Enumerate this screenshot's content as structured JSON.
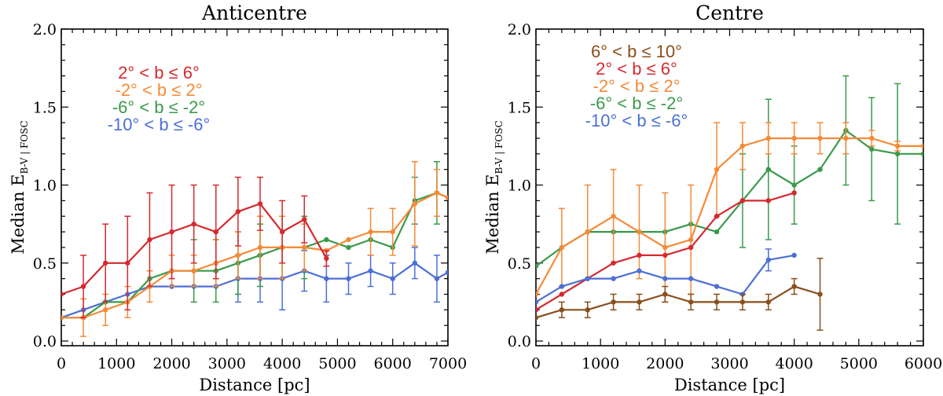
{
  "chart_data": [
    {
      "type": "line",
      "title": "Anticentre",
      "xlabel": "Distance [pc]",
      "ylabel": "Median E",
      "ylabel_sub": "B-V | FOSC",
      "xlim": [
        0,
        7000
      ],
      "ylim": [
        -0.03,
        2.0
      ],
      "xticks": [
        0,
        1000,
        2000,
        3000,
        4000,
        5000,
        6000,
        7000
      ],
      "yticks": [
        0.0,
        0.5,
        1.0,
        1.5,
        2.0
      ],
      "xtick_labels": [
        "0",
        "1000",
        "2000",
        "3000",
        "4000",
        "5000",
        "6000",
        "7000"
      ],
      "ytick_labels": [
        "0.0",
        "0.5",
        "1.0",
        "1.5",
        "2.0"
      ],
      "legend": [
        {
          "label": "2° < b ≤  6°",
          "color": "#d42a2e"
        },
        {
          "label": "-2° < b ≤  2°",
          "color": "#f58a38"
        },
        {
          "label": "-6° < b ≤ -2°",
          "color": "#3a9a4a"
        },
        {
          "label": "-10° < b ≤ -6°",
          "color": "#4c6fd6"
        }
      ],
      "series": [
        {
          "name": "-10° < b ≤ -6°",
          "color": "#4c6fd6",
          "x": [
            0,
            400,
            800,
            1200,
            1600,
            2000,
            2400,
            2800,
            3200,
            3600,
            4000,
            4400,
            4800,
            5200,
            5600,
            6000,
            6400,
            6800,
            7000
          ],
          "y": [
            0.15,
            0.2,
            0.25,
            0.3,
            0.35,
            0.35,
            0.35,
            0.35,
            0.4,
            0.4,
            0.4,
            0.45,
            0.4,
            0.4,
            0.45,
            0.4,
            0.5,
            0.4,
            0.44
          ],
          "err": [
            0,
            0,
            0,
            0,
            0,
            0,
            0,
            0,
            0.15,
            0.15,
            0.2,
            0.13,
            0.15,
            0.1,
            0.1,
            0.1,
            0.1,
            0.15,
            0
          ]
        },
        {
          "name": "-6° < b ≤ -2°",
          "color": "#3a9a4a",
          "x": [
            0,
            400,
            800,
            1200,
            1600,
            2000,
            2400,
            2800,
            3200,
            3600,
            4000,
            4400,
            4800,
            5200,
            5600,
            6000,
            6400,
            6800,
            7000
          ],
          "y": [
            0.15,
            0.15,
            0.25,
            0.25,
            0.4,
            0.45,
            0.45,
            0.45,
            0.5,
            0.55,
            0.6,
            0.6,
            0.65,
            0.6,
            0.65,
            0.6,
            0.9,
            0.95,
            0.92
          ],
          "err": [
            0,
            0,
            0,
            0,
            0,
            0,
            0.2,
            0.2,
            0.2,
            0.2,
            0.2,
            0.2,
            0,
            0,
            0,
            0,
            0.15,
            0.2,
            0
          ]
        },
        {
          "name": "-2° < b ≤  2°",
          "color": "#f58a38",
          "x": [
            0,
            400,
            800,
            1200,
            1600,
            2000,
            2400,
            2800,
            3200,
            3600,
            4000,
            4400,
            4800,
            5200,
            5600,
            6000,
            6400,
            6800,
            7000
          ],
          "y": [
            0.15,
            0.15,
            0.2,
            0.25,
            0.35,
            0.45,
            0.45,
            0.5,
            0.55,
            0.6,
            0.6,
            0.6,
            0.58,
            0.65,
            0.7,
            0.7,
            0.88,
            0.95,
            0.92
          ],
          "err": [
            0,
            0.12,
            0.1,
            0.1,
            0.1,
            0.1,
            0.1,
            0.15,
            0.15,
            0.2,
            0.2,
            0.15,
            0,
            0,
            0.15,
            0.15,
            0.27,
            0.15,
            0
          ]
        },
        {
          "name": "2° < b ≤  6°",
          "color": "#d42a2e",
          "x": [
            0,
            400,
            800,
            1200,
            1600,
            2000,
            2400,
            2800,
            3200,
            3600,
            4000,
            4400,
            4800
          ],
          "y": [
            0.3,
            0.35,
            0.5,
            0.5,
            0.65,
            0.7,
            0.75,
            0.7,
            0.83,
            0.88,
            0.7,
            0.78,
            0.53
          ],
          "err": [
            0,
            0.2,
            0.25,
            0.3,
            0.3,
            0.3,
            0.25,
            0.3,
            0.22,
            0.17,
            0.2,
            0.15,
            0.05
          ]
        }
      ]
    },
    {
      "type": "line",
      "title": "Centre",
      "xlabel": "Distance [pc]",
      "ylabel": "Median E",
      "ylabel_sub": "B-V | FOSC",
      "xlim": [
        0,
        6000
      ],
      "ylim": [
        -0.03,
        2.0
      ],
      "xticks": [
        0,
        1000,
        2000,
        3000,
        4000,
        5000,
        6000
      ],
      "yticks": [
        0.0,
        0.5,
        1.0,
        1.5,
        2.0
      ],
      "xtick_labels": [
        "0",
        "1000",
        "2000",
        "3000",
        "4000",
        "5000",
        "6000"
      ],
      "ytick_labels": [
        "0.0",
        "0.5",
        "1.0",
        "1.5",
        "2.0"
      ],
      "legend": [
        {
          "label": "6° < b ≤ 10°",
          "color": "#8a4f1c"
        },
        {
          "label": "2° < b ≤  6°",
          "color": "#d42a2e"
        },
        {
          "label": "-2° < b ≤  2°",
          "color": "#f58a38"
        },
        {
          "label": "-6° < b ≤ -2°",
          "color": "#3a9a4a"
        },
        {
          "label": "-10° < b ≤ -6°",
          "color": "#4c6fd6"
        }
      ],
      "series": [
        {
          "name": "-6° < b ≤ -2°",
          "color": "#3a9a4a",
          "x": [
            0,
            400,
            800,
            1200,
            1600,
            2000,
            2400,
            2800,
            3200,
            3600,
            4000,
            4400,
            4800,
            5200,
            5600,
            6000
          ],
          "y": [
            0.48,
            0.6,
            0.7,
            0.7,
            0.7,
            0.7,
            0.75,
            0.7,
            0.9,
            1.1,
            1.0,
            1.1,
            1.35,
            1.23,
            1.2,
            1.2
          ],
          "err": [
            0,
            0,
            0,
            0,
            0,
            0,
            0,
            0,
            0.3,
            0.45,
            0.25,
            0,
            0.35,
            0.33,
            0.45,
            0
          ]
        },
        {
          "name": "-2° < b ≤  2°",
          "color": "#f58a38",
          "x": [
            0,
            400,
            800,
            1200,
            1600,
            2000,
            2400,
            2800,
            3200,
            3600,
            4000,
            4400,
            4800,
            5200,
            5600,
            6000
          ],
          "y": [
            0.3,
            0.6,
            0.7,
            0.8,
            0.7,
            0.6,
            0.65,
            1.1,
            1.25,
            1.3,
            1.3,
            1.3,
            1.3,
            1.3,
            1.25,
            1.25
          ],
          "err": [
            0,
            0.25,
            0.3,
            0.3,
            0.3,
            0.35,
            0.35,
            0.3,
            0.15,
            0.1,
            0.1,
            0.1,
            0.1,
            0.05,
            0.03,
            0
          ]
        },
        {
          "name": "2° < b ≤  6°",
          "color": "#d42a2e",
          "x": [
            0,
            400,
            800,
            1200,
            1600,
            2000,
            2400,
            2800,
            3200,
            3600,
            4000
          ],
          "y": [
            0.2,
            0.3,
            0.4,
            0.5,
            0.55,
            0.55,
            0.6,
            0.8,
            0.9,
            0.9,
            0.95
          ],
          "err": [
            0,
            0,
            0,
            0,
            0,
            0,
            0,
            0,
            0,
            0,
            0
          ]
        },
        {
          "name": "-10° < b ≤ -6°",
          "color": "#4c6fd6",
          "x": [
            0,
            400,
            800,
            1200,
            1600,
            2000,
            2400,
            2800,
            3200,
            3600,
            4000
          ],
          "y": [
            0.25,
            0.35,
            0.4,
            0.4,
            0.45,
            0.4,
            0.4,
            0.35,
            0.3,
            0.52,
            0.55
          ],
          "err": [
            0,
            0,
            0,
            0,
            0,
            0,
            0,
            0,
            0,
            0.07,
            0
          ]
        },
        {
          "name": "6° < b ≤ 10°",
          "color": "#8a4f1c",
          "x": [
            0,
            400,
            800,
            1200,
            1600,
            2000,
            2400,
            2800,
            3200,
            3600,
            4000,
            4400
          ],
          "y": [
            0.15,
            0.2,
            0.2,
            0.25,
            0.25,
            0.3,
            0.25,
            0.25,
            0.25,
            0.25,
            0.35,
            0.3
          ],
          "err": [
            0,
            0.05,
            0.05,
            0.05,
            0.05,
            0.05,
            0.05,
            0.05,
            0.05,
            0.05,
            0.05,
            0.23
          ]
        }
      ]
    }
  ]
}
